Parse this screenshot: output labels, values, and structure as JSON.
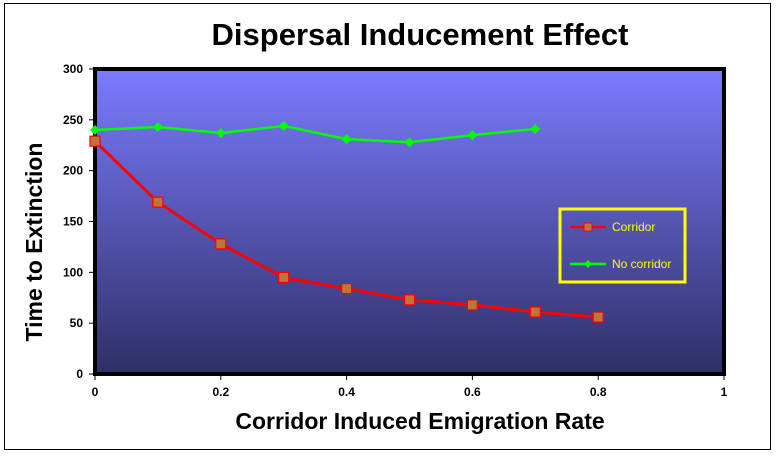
{
  "chart_data": {
    "type": "line",
    "title": "Dispersal Inducement Effect",
    "xlabel": "Corridor Induced Emigration Rate",
    "ylabel": "Time to Extinction",
    "xlim": [
      0,
      1
    ],
    "ylim": [
      0,
      300
    ],
    "x_ticks": [
      "0",
      "0.2",
      "0.4",
      "0.6",
      "0.8",
      "1"
    ],
    "y_ticks": [
      "0",
      "50",
      "100",
      "150",
      "200",
      "250",
      "300"
    ],
    "grid": false,
    "legend_position": "right",
    "series": [
      {
        "name": "Corridor",
        "color": "#ff0000",
        "marker": "square",
        "x": [
          0,
          0.1,
          0.2,
          0.3,
          0.4,
          0.5,
          0.6,
          0.7,
          0.8
        ],
        "y": [
          229,
          169,
          128,
          95,
          84,
          73,
          68,
          61,
          56
        ]
      },
      {
        "name": "No corridor",
        "color": "#00ff00",
        "marker": "diamond",
        "x": [
          0,
          0.1,
          0.2,
          0.3,
          0.4,
          0.5,
          0.6,
          0.7
        ],
        "y": [
          240,
          243,
          237,
          244,
          231,
          228,
          235,
          241
        ]
      }
    ],
    "colors": {
      "plot_background_top": "#7b7bff",
      "plot_background_bottom": "#2f2f66",
      "legend_border": "#ffff00",
      "marker_fill_corridor": "#c0733a"
    }
  }
}
